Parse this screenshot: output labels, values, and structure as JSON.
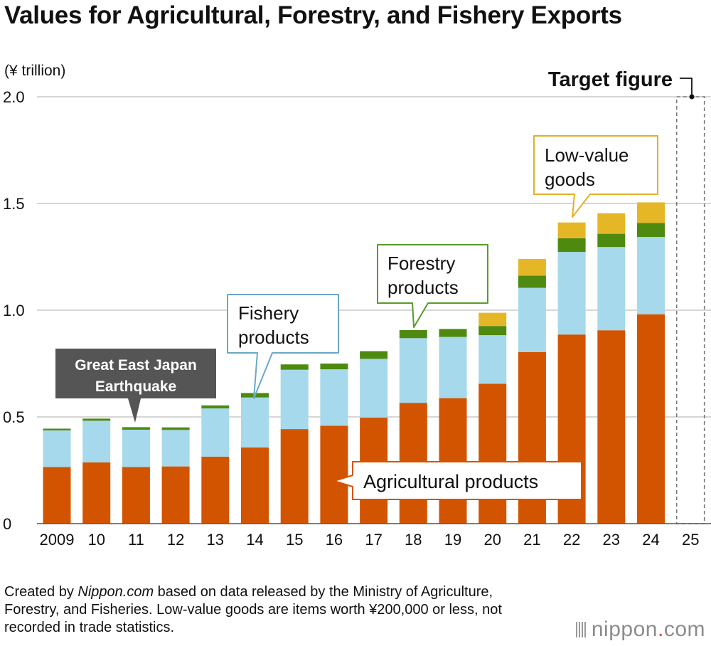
{
  "title": "Values for Agricultural, Forestry, and Fishery Exports",
  "chart_data": {
    "type": "bar",
    "stacked": true,
    "unit_label": "(¥ trillion)",
    "categories": [
      "2009",
      "10",
      "11",
      "12",
      "13",
      "14",
      "15",
      "16",
      "17",
      "18",
      "19",
      "20",
      "21",
      "22",
      "23",
      "24",
      "25"
    ],
    "ylim": [
      0,
      2.0
    ],
    "yticks": [
      {
        "value": 0,
        "label": "0"
      },
      {
        "value": 0.5,
        "label": "0.5"
      },
      {
        "value": 1.0,
        "label": "1.0"
      },
      {
        "value": 1.5,
        "label": "1.5"
      },
      {
        "value": 2.0,
        "label": "2.0"
      }
    ],
    "grid": true,
    "series": [
      {
        "name": "Agricultural products",
        "color": "#d35400",
        "values": [
          0.265,
          0.287,
          0.265,
          0.268,
          0.314,
          0.357,
          0.443,
          0.459,
          0.497,
          0.566,
          0.588,
          0.655,
          0.804,
          0.886,
          0.906,
          0.981,
          null
        ]
      },
      {
        "name": "Fishery products",
        "color": "#a6d9eb",
        "values": [
          0.172,
          0.195,
          0.175,
          0.171,
          0.226,
          0.234,
          0.278,
          0.264,
          0.275,
          0.303,
          0.287,
          0.228,
          0.301,
          0.387,
          0.39,
          0.362,
          null
        ]
      },
      {
        "name": "Forestry products",
        "color": "#4f8a10",
        "values": [
          0.008,
          0.01,
          0.012,
          0.012,
          0.014,
          0.021,
          0.025,
          0.027,
          0.036,
          0.038,
          0.037,
          0.043,
          0.057,
          0.064,
          0.062,
          0.066,
          null
        ]
      },
      {
        "name": "Low-value goods",
        "color": "#e5b726",
        "values": [
          null,
          null,
          null,
          null,
          null,
          null,
          null,
          null,
          null,
          null,
          null,
          0.062,
          0.078,
          0.074,
          0.096,
          0.096,
          null
        ]
      }
    ],
    "target": {
      "category": "25",
      "value": 2.0,
      "label": "Target figure"
    },
    "annotations": {
      "earthquake": [
        "Great East Japan",
        "Earthquake"
      ],
      "fishery": [
        "Fishery",
        "products"
      ],
      "forestry": [
        "Forestry",
        "products"
      ],
      "lowvalue": [
        "Low-value",
        "goods"
      ],
      "agricultural": "Agricultural products"
    }
  },
  "note": {
    "prefix": "Created by ",
    "source": "Nippon.com",
    "text": " based on data released by the Ministry of Agriculture, Forestry, and Fisheries. Low-value goods are items worth ¥200,000 or less, not recorded in trade statistics."
  },
  "logo": {
    "name": "nippon",
    "dot": ".",
    "tld": "com"
  }
}
